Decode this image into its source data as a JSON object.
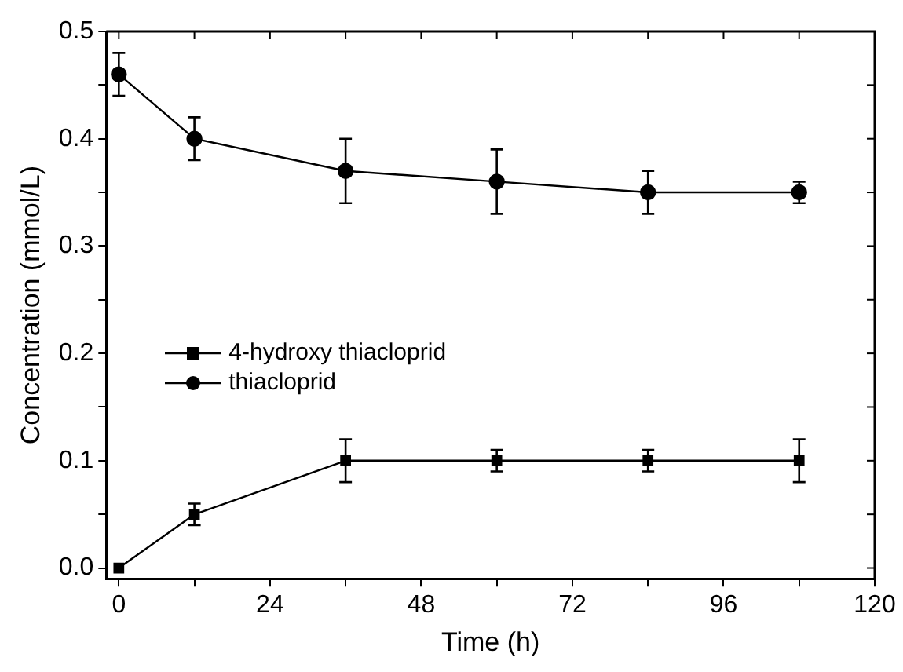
{
  "chart_data": {
    "type": "line",
    "xlabel": "Time (h)",
    "ylabel": "Concentration (mmol/L)",
    "x": [
      0,
      12,
      36,
      60,
      84,
      108
    ],
    "series": [
      {
        "name": "4-hydroxy thiacloprid",
        "color": "#000000",
        "marker": "square",
        "values": [
          0,
          0.05,
          0.1,
          0.1,
          0.1,
          0.1
        ],
        "errors": [
          null,
          0.01,
          0.02,
          0.01,
          0.01,
          0.02
        ]
      },
      {
        "name": "thiacloprid",
        "color": "#000000",
        "marker": "circle",
        "values": [
          0.46,
          0.4,
          0.37,
          0.36,
          0.35,
          0.35
        ],
        "errors": [
          0.02,
          0.02,
          0.03,
          0.03,
          0.02,
          0.01
        ]
      }
    ],
    "xlim": [
      -2,
      120
    ],
    "xticks": [
      0,
      {
        "value": 12,
        "label": null
      },
      24,
      {
        "value": 36,
        "label": null
      },
      48,
      {
        "value": 60,
        "label": null
      },
      72,
      {
        "value": 84,
        "label": null
      },
      96,
      {
        "value": 108,
        "label": null
      },
      120
    ],
    "ylim": [
      -0.01,
      0.5
    ],
    "yticks": [
      {
        "value": 0,
        "label": "0.0"
      },
      {
        "value": 0.05,
        "label": null
      },
      0.1,
      {
        "value": 0.15,
        "label": null
      },
      0.2,
      {
        "value": 0.25,
        "label": null
      },
      0.3,
      {
        "value": 0.35,
        "label": null
      },
      0.4,
      {
        "value": 0.45,
        "label": null
      },
      0.5
    ],
    "grid": false,
    "legend": "center left",
    "line_style": "solid"
  }
}
